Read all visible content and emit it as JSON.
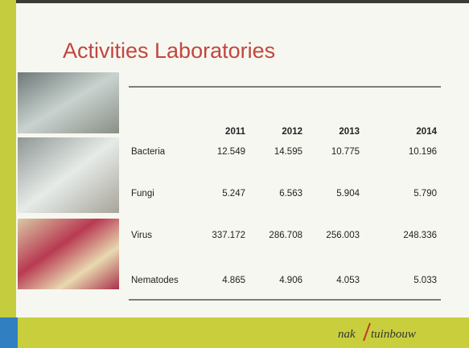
{
  "title": "Activities Laboratories",
  "table": {
    "header": [
      "2011",
      "2012",
      "2013",
      "2014"
    ],
    "rows": [
      [
        "Bacteria",
        "12.549",
        "14.595",
        "10.775",
        "10.196"
      ],
      [
        "Fungi",
        "5.247",
        "6.563",
        "5.904",
        "5.790"
      ],
      [
        "Virus",
        "337.172",
        "286.708",
        "256.003",
        "248.336"
      ],
      [
        "Nematodes",
        "4.865",
        "4.906",
        "4.053",
        "5.033"
      ]
    ]
  },
  "logo": {
    "left": "nak",
    "right": "tuinbouw"
  }
}
